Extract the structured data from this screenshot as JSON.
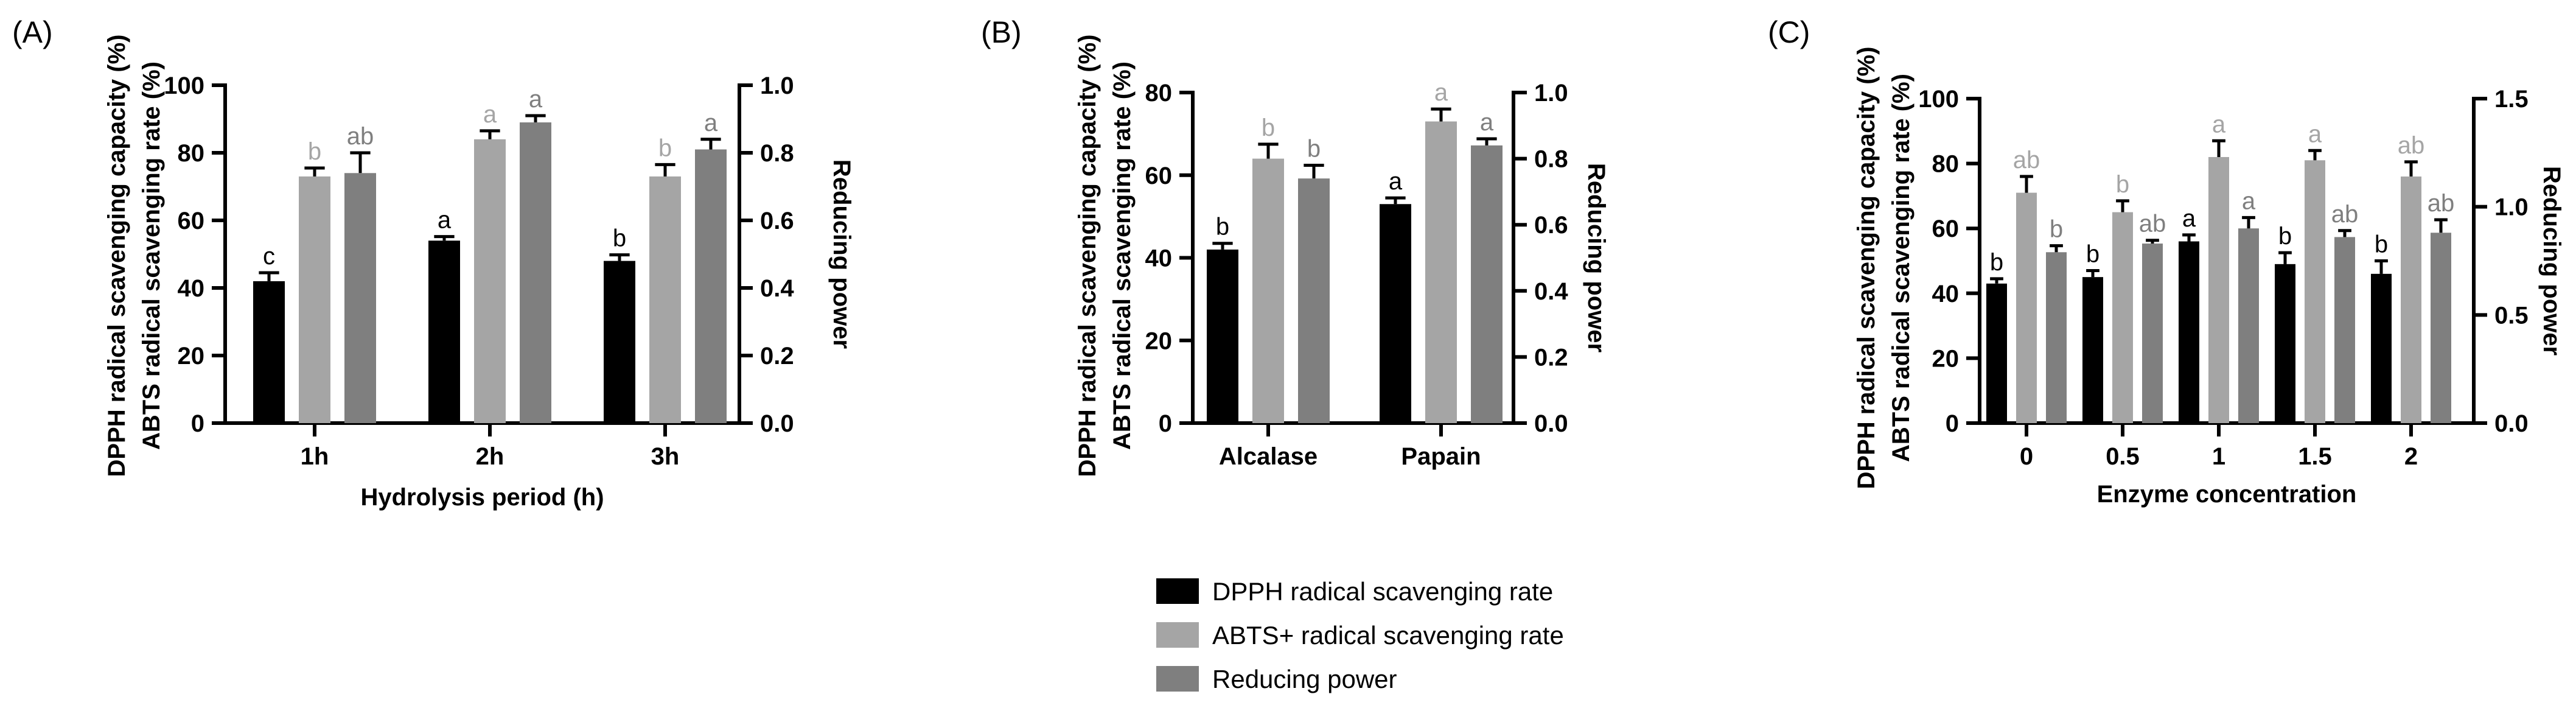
{
  "figure": {
    "panels": [
      {
        "panel_label": "(A)",
        "xlabel": "Hydrolysis period (h)",
        "ylabel_lines": [
          "DPPH radical scavenging capacity (%)",
          "ABTS radical scavenging rate (%)"
        ],
        "ylabel_right": "Reducing power"
      },
      {
        "panel_label": "(B)",
        "xlabel": "",
        "ylabel_lines": [
          "DPPH radical scavenging capacity (%)",
          "ABTS radical scavenging rate (%)"
        ],
        "ylabel_right": "Reducing power"
      },
      {
        "panel_label": "(C)",
        "xlabel": "Enzyme concentration",
        "ylabel_lines": [
          "DPPH radical scavenging capacity (%)",
          "ABTS radical scavenging rate (%)"
        ],
        "ylabel_right": "Reducing power"
      }
    ],
    "legend": {
      "items": [
        {
          "label": "DPPH radical scavenging rate",
          "color": "#000000"
        },
        {
          "label": "ABTS+ radical scavenging rate",
          "color": "#a5a5a5"
        },
        {
          "label": "Reducing power",
          "color": "#7f7f7f"
        }
      ]
    }
  },
  "chart_data": [
    {
      "type": "bar",
      "panel": "(A)",
      "categories": [
        "1h",
        "2h",
        "3h"
      ],
      "xlabel": "Hydrolysis period (h)",
      "ylabel": "DPPH radical scavenging capacity (%) / ABTS radical scavenging rate (%)",
      "ylim": [
        0,
        100
      ],
      "yticks": [
        "0",
        "20",
        "40",
        "60",
        "80",
        "100"
      ],
      "y2label": "Reducing power",
      "y2lim": [
        0,
        1.0
      ],
      "y2ticks": [
        "0.0",
        "0.2",
        "0.4",
        "0.6",
        "0.8",
        "1.0"
      ],
      "series": [
        {
          "name": "DPPH radical scavenging rate",
          "axis": "left",
          "color": "#000000",
          "values": [
            42,
            54,
            48
          ],
          "errors": [
            2.5,
            1.2,
            1.8
          ],
          "labels": [
            "c",
            "a",
            "b"
          ],
          "label_color": "#000000"
        },
        {
          "name": "ABTS+ radical scavenging rate",
          "axis": "left",
          "color": "#a5a5a5",
          "values": [
            73,
            84,
            73
          ],
          "errors": [
            2.5,
            2.5,
            3.5
          ],
          "labels": [
            "b",
            "a",
            "b"
          ],
          "label_color": "#a5a5a5"
        },
        {
          "name": "Reducing power",
          "axis": "right",
          "color": "#7f7f7f",
          "values": [
            0.74,
            0.89,
            0.81
          ],
          "errors": [
            0.06,
            0.02,
            0.03
          ],
          "labels": [
            "ab",
            "a",
            "a"
          ],
          "label_color": "#7f7f7f"
        }
      ]
    },
    {
      "type": "bar",
      "panel": "(B)",
      "categories": [
        "Alcalase",
        "Papain"
      ],
      "xlabel": "",
      "ylabel": "DPPH radical scavenging capacity (%) / ABTS radical scavenging rate (%)",
      "ylim": [
        0,
        80
      ],
      "yticks": [
        "0",
        "20",
        "40",
        "60",
        "80"
      ],
      "y2label": "Reducing power",
      "y2lim": [
        0,
        1.0
      ],
      "y2ticks": [
        "0.0",
        "0.2",
        "0.4",
        "0.6",
        "0.8",
        "1.0"
      ],
      "series": [
        {
          "name": "DPPH radical scavenging rate",
          "axis": "left",
          "color": "#000000",
          "values": [
            42,
            53
          ],
          "errors": [
            1.5,
            1.5
          ],
          "labels": [
            "b",
            "a"
          ],
          "label_color": "#000000"
        },
        {
          "name": "ABTS+ radical scavenging rate",
          "axis": "left",
          "color": "#a5a5a5",
          "values": [
            64,
            73
          ],
          "errors": [
            3.5,
            3
          ],
          "labels": [
            "b",
            "a"
          ],
          "label_color": "#a5a5a5"
        },
        {
          "name": "Reducing power",
          "axis": "right",
          "color": "#7f7f7f",
          "values": [
            0.74,
            0.84
          ],
          "errors": [
            0.04,
            0.02
          ],
          "labels": [
            "b",
            "a"
          ],
          "label_color": "#7f7f7f"
        }
      ]
    },
    {
      "type": "bar",
      "panel": "(C)",
      "categories": [
        "0",
        "0.5",
        "1",
        "1.5",
        "2"
      ],
      "xlabel": "Enzyme concentration",
      "ylabel": "DPPH radical scavenging capacity (%) / ABTS radical scavenging rate (%)",
      "ylim": [
        0,
        100
      ],
      "yticks": [
        "0",
        "20",
        "40",
        "60",
        "80",
        "100"
      ],
      "y2label": "Reducing power",
      "y2lim": [
        0,
        1.5
      ],
      "y2ticks": [
        "0.0",
        "0.5",
        "1.0",
        "1.5"
      ],
      "series": [
        {
          "name": "DPPH radical scavenging rate",
          "axis": "left",
          "color": "#000000",
          "values": [
            43,
            45,
            56,
            49,
            46
          ],
          "errors": [
            1.5,
            2,
            2,
            3.5,
            4
          ],
          "labels": [
            "b",
            "b",
            "a",
            "b",
            "b"
          ],
          "label_color": "#000000"
        },
        {
          "name": "ABTS+ radical scavenging rate",
          "axis": "left",
          "color": "#a5a5a5",
          "values": [
            71,
            65,
            82,
            81,
            76
          ],
          "errors": [
            5,
            3.5,
            5,
            3,
            4.5
          ],
          "labels": [
            "ab",
            "b",
            "a",
            "a",
            "ab"
          ],
          "label_color": "#a5a5a5"
        },
        {
          "name": "Reducing power",
          "axis": "right",
          "color": "#7f7f7f",
          "values": [
            0.79,
            0.83,
            0.9,
            0.86,
            0.88
          ],
          "errors": [
            0.03,
            0.015,
            0.05,
            0.03,
            0.06
          ],
          "labels": [
            "b",
            "ab",
            "a",
            "ab",
            "ab"
          ],
          "label_color": "#7f7f7f"
        }
      ]
    }
  ]
}
